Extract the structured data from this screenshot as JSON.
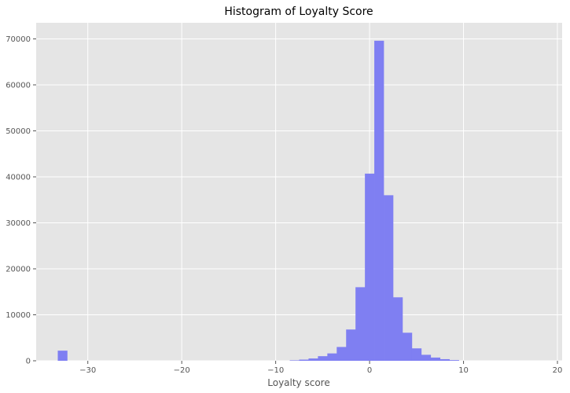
{
  "chart_data": {
    "type": "bar",
    "title": "Histogram of Loyalty Score",
    "xlabel": "Loyalty score",
    "ylabel": "",
    "xlim": [
      -35.5,
      20.5
    ],
    "ylim": [
      0,
      73500
    ],
    "xticks": [
      -30,
      -20,
      -10,
      0,
      10,
      20
    ],
    "yticks": [
      0,
      10000,
      20000,
      30000,
      40000,
      50000,
      60000,
      70000
    ],
    "grid": true,
    "bin_width": 1.03,
    "bins": [
      {
        "x0": -33.2,
        "value": 2200
      },
      {
        "x0": -8.5,
        "value": 100
      },
      {
        "x0": -7.5,
        "value": 250
      },
      {
        "x0": -6.5,
        "value": 500
      },
      {
        "x0": -5.5,
        "value": 1000
      },
      {
        "x0": -4.5,
        "value": 1600
      },
      {
        "x0": -3.5,
        "value": 3000
      },
      {
        "x0": -2.5,
        "value": 6800
      },
      {
        "x0": -1.5,
        "value": 16000
      },
      {
        "x0": -0.5,
        "value": 40700
      },
      {
        "x0": 0.5,
        "value": 69600
      },
      {
        "x0": 1.5,
        "value": 36000
      },
      {
        "x0": 2.5,
        "value": 13800
      },
      {
        "x0": 3.5,
        "value": 6100
      },
      {
        "x0": 4.5,
        "value": 2700
      },
      {
        "x0": 5.5,
        "value": 1300
      },
      {
        "x0": 6.5,
        "value": 700
      },
      {
        "x0": 7.5,
        "value": 350
      },
      {
        "x0": 8.5,
        "value": 150
      }
    ],
    "bar_color": "#7f7ff2",
    "plot_background": "#e5e5e5",
    "grid_color": "#ffffff"
  }
}
